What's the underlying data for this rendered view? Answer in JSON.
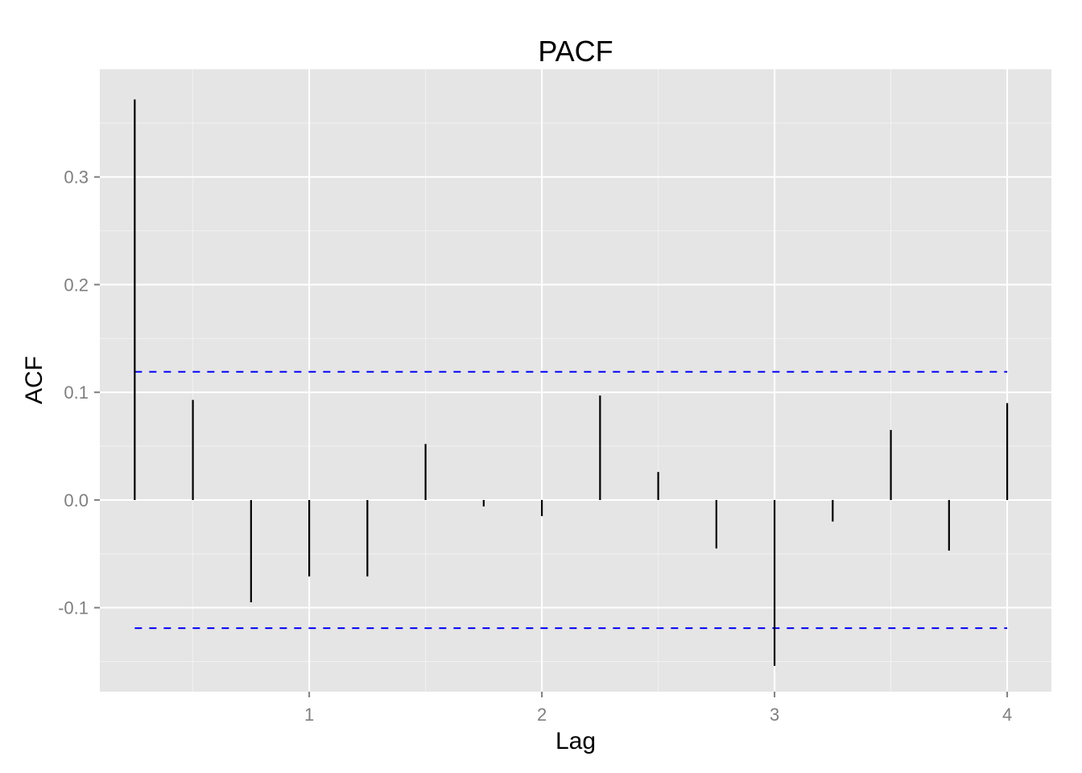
{
  "chart_data": {
    "type": "line",
    "subtype": "pacf-stem",
    "title": "PACF",
    "xlabel": "Lag",
    "ylabel": "ACF",
    "xlim": [
      0.1,
      4.19
    ],
    "ylim": [
      -0.178,
      0.4
    ],
    "x_ticks": [
      1,
      2,
      3,
      4
    ],
    "x_tick_labels": [
      "1",
      "2",
      "3",
      "4"
    ],
    "y_ticks": [
      -0.1,
      0.0,
      0.1,
      0.2,
      0.3
    ],
    "y_tick_labels": [
      "-0.1",
      "0.0",
      "0.1",
      "0.2",
      "0.3"
    ],
    "grid": true,
    "background": "#e5e5e5",
    "stem_color": "#000000",
    "ci_color": "#0000ff",
    "confidence_bound": 0.119,
    "lags": [
      0.25,
      0.5,
      0.75,
      1.0,
      1.25,
      1.5,
      1.75,
      2.0,
      2.25,
      2.5,
      2.75,
      3.0,
      3.25,
      3.5,
      3.75,
      4.0
    ],
    "values": [
      0.372,
      0.093,
      -0.095,
      -0.071,
      -0.071,
      0.052,
      -0.006,
      -0.015,
      0.097,
      0.026,
      -0.045,
      -0.154,
      -0.02,
      0.065,
      -0.047,
      0.09
    ]
  }
}
